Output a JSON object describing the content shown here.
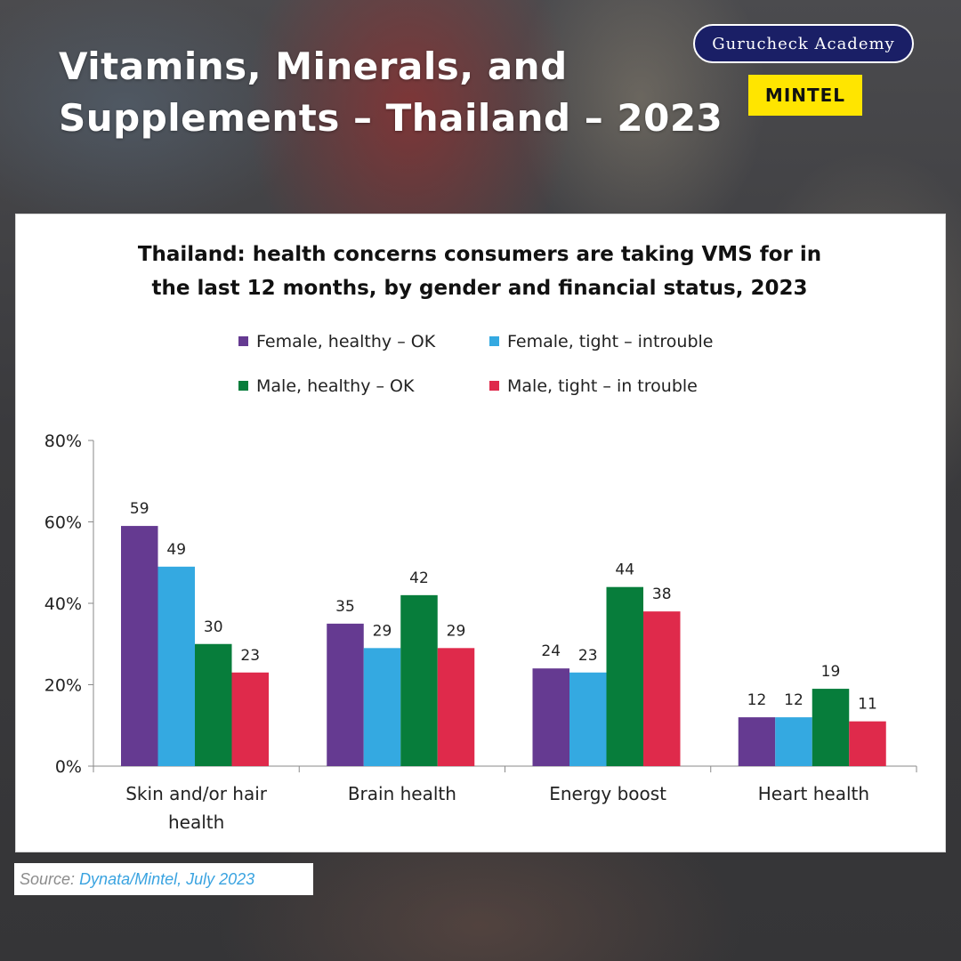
{
  "header": {
    "title_line1": "Vitamins, Minerals, and",
    "title_line2": "Supplements – Thailand – 2023",
    "academy_badge": "Gurucheck Academy",
    "mintel_logo": "MINTEL"
  },
  "source": {
    "label": "Source:",
    "value": "Dynata/Mintel, July 2023"
  },
  "chart_data": {
    "type": "bar",
    "title_lines": [
      "Thailand: health concerns consumers are taking VMS for in",
      "the last 12 months, by gender and financial status, 2023"
    ],
    "categories": [
      [
        "Skin and/or hair",
        "health"
      ],
      [
        "Brain health"
      ],
      [
        "Energy boost"
      ],
      [
        "Heart health"
      ]
    ],
    "series": [
      {
        "name": "Female, healthy – OK",
        "color": "#653a91",
        "values": [
          59,
          35,
          24,
          12
        ]
      },
      {
        "name": "Female, tight – introuble",
        "color": "#34a9e1",
        "values": [
          49,
          29,
          23,
          12
        ]
      },
      {
        "name": "Male, healthy – OK",
        "color": "#077d3b",
        "values": [
          30,
          42,
          44,
          19
        ]
      },
      {
        "name": "Male, tight – in trouble",
        "color": "#df2a4b",
        "values": [
          23,
          29,
          38,
          11
        ]
      }
    ],
    "y_ticks": [
      "0%",
      "20%",
      "40%",
      "60%",
      "80%"
    ],
    "ylim": [
      0,
      80
    ],
    "grid": false,
    "legend_position": "top"
  }
}
